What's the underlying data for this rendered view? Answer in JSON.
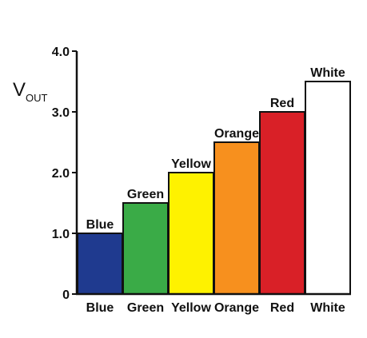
{
  "chart_data": {
    "type": "bar",
    "ylabel": "V",
    "ylabel_subscript": "OUT",
    "xlabel": "",
    "title": "",
    "categories": [
      "Blue",
      "Green",
      "Yellow",
      "Orange",
      "Red",
      "White"
    ],
    "values": [
      1.0,
      1.5,
      2.0,
      2.5,
      3.0,
      3.5
    ],
    "bar_labels": [
      "Blue",
      "Green",
      "Yellow",
      "Orange",
      "Red",
      "White"
    ],
    "colors": [
      "#1f3a8f",
      "#3aab47",
      "#fef200",
      "#f7901e",
      "#d92027",
      "#ffffff"
    ],
    "ylim": [
      0,
      4.0
    ],
    "yticks": [
      0,
      1.0,
      2.0,
      3.0,
      4.0
    ],
    "ytick_labels": [
      "0",
      "1.0",
      "2.0",
      "3.0",
      "4.0"
    ],
    "grid": false,
    "legend": "none"
  }
}
